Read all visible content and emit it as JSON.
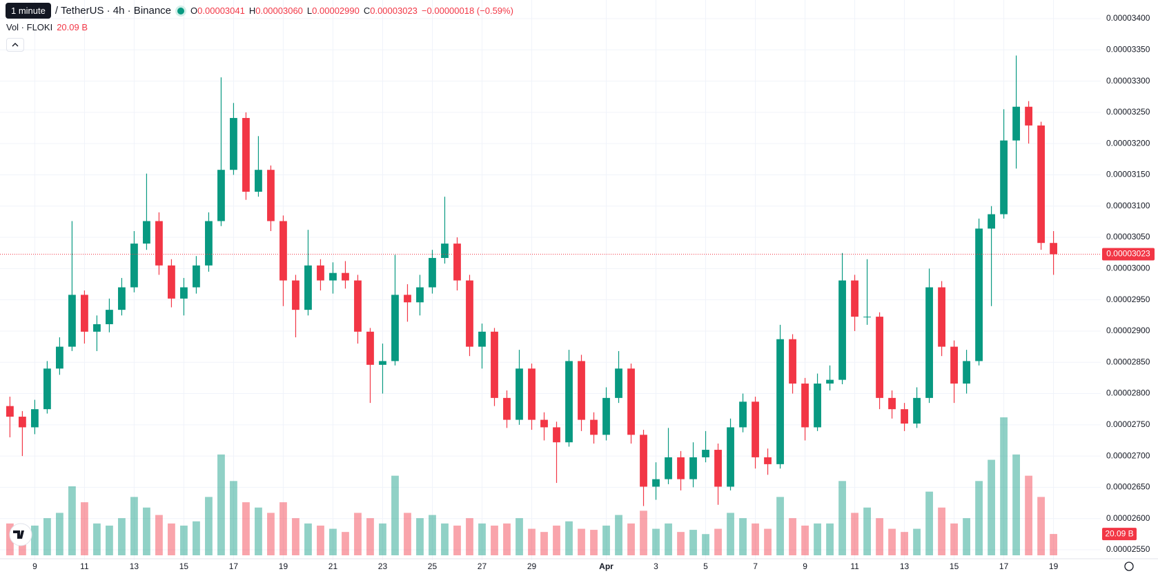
{
  "chart_data": {
    "type": "candlestick",
    "legend": {
      "symbol": "/ TetherUS · 4h · Binance",
      "items": [
        {
          "label": "O",
          "value": "0.00003041"
        },
        {
          "label": "H",
          "value": "0.00003060"
        },
        {
          "label": "L",
          "value": "0.00002990"
        },
        {
          "label": "C",
          "value": "0.00003023"
        }
      ],
      "change": "−0.00000018 (−0.59%)"
    },
    "tooltip": "1 minute",
    "volume_title": "Vol · FLOKI",
    "volume_value_label": "20.09 B",
    "last_price": {
      "value": 3.023e-05,
      "label": "0.00003023"
    },
    "up_color": "#089981",
    "down_color": "#f23645",
    "grid": true,
    "x": [
      8,
      8.5,
      9,
      9.5,
      10,
      10.5,
      11,
      11.5,
      12,
      12.5,
      13,
      13.5,
      14,
      14.5,
      15,
      15.5,
      16,
      16.5,
      17,
      17.5,
      18,
      18.5,
      19,
      19.5,
      20,
      20.5,
      21,
      21.5,
      22,
      22.5,
      23,
      23.5,
      24,
      24.5,
      25,
      25.5,
      26,
      26.5,
      27,
      27.5,
      28,
      28.5,
      29,
      29.5,
      30,
      30.5,
      31,
      31.5,
      32,
      32.5,
      33,
      33.5,
      34,
      34.5,
      35,
      35.5,
      36,
      36.5,
      37,
      37.5,
      38,
      38.5,
      39,
      39.5,
      40,
      40.5,
      41,
      41.5,
      42,
      42.5,
      43,
      43.5,
      44,
      44.5,
      45,
      45.5,
      46,
      46.5,
      47,
      47.5,
      48,
      48.5,
      49,
      49.5,
      50
    ],
    "open": [
      2.78e-05,
      2.763e-05,
      2.746e-05,
      2.775e-05,
      2.84e-05,
      2.875e-05,
      2.958e-05,
      2.899e-05,
      2.911e-05,
      2.934e-05,
      2.97e-05,
      3.04e-05,
      3.076e-05,
      3.005e-05,
      2.952e-05,
      2.97e-05,
      3.005e-05,
      3.076e-05,
      3.158e-05,
      3.241e-05,
      3.123e-05,
      3.158e-05,
      3.076e-05,
      2.981e-05,
      2.934e-05,
      3.005e-05,
      2.981e-05,
      2.993e-05,
      2.981e-05,
      2.899e-05,
      2.846e-05,
      2.852e-05,
      2.958e-05,
      2.946e-05,
      2.97e-05,
      3.017e-05,
      3.04e-05,
      2.981e-05,
      2.875e-05,
      2.899e-05,
      2.793e-05,
      2.758e-05,
      2.84e-05,
      2.758e-05,
      2.746e-05,
      2.722e-05,
      2.852e-05,
      2.758e-05,
      2.734e-05,
      2.793e-05,
      2.84e-05,
      2.734e-05,
      2.651e-05,
      2.663e-05,
      2.698e-05,
      2.663e-05,
      2.698e-05,
      2.71e-05,
      2.651e-05,
      2.746e-05,
      2.787e-05,
      2.698e-05,
      2.687e-05,
      2.887e-05,
      2.816e-05,
      2.746e-05,
      2.816e-05,
      2.822e-05,
      2.981e-05,
      2.923e-05,
      2.923e-05,
      2.793e-05,
      2.775e-05,
      2.752e-05,
      2.793e-05,
      2.97e-05,
      2.875e-05,
      2.816e-05,
      2.852e-05,
      3.064e-05,
      3.087e-05,
      3.205e-05,
      3.259e-05,
      3.229e-05,
      3.041e-05
    ],
    "high": [
      2.795e-05,
      2.772e-05,
      2.79e-05,
      2.852e-05,
      2.89e-05,
      3.076e-05,
      2.965e-05,
      2.925e-05,
      2.952e-05,
      2.985e-05,
      3.06e-05,
      3.152e-05,
      3.09e-05,
      3.015e-05,
      2.985e-05,
      3.02e-05,
      3.09e-05,
      3.306e-05,
      3.265e-05,
      3.25e-05,
      3.212e-05,
      3.165e-05,
      3.085e-05,
      2.99e-05,
      3.062e-05,
      3.015e-05,
      3.01e-05,
      3.012e-05,
      2.99e-05,
      2.905e-05,
      2.88e-05,
      3.022e-05,
      2.975e-05,
      2.99e-05,
      3.03e-05,
      3.115e-05,
      3.05e-05,
      2.99e-05,
      2.912e-05,
      2.905e-05,
      2.805e-05,
      2.87e-05,
      2.848e-05,
      2.77e-05,
      2.755e-05,
      2.87e-05,
      2.862e-05,
      2.77e-05,
      2.81e-05,
      2.868e-05,
      2.848e-05,
      2.742e-05,
      2.69e-05,
      2.745e-05,
      2.708e-05,
      2.722e-05,
      2.74e-05,
      2.72e-05,
      2.76e-05,
      2.8e-05,
      2.795e-05,
      2.712e-05,
      2.91e-05,
      2.895e-05,
      2.825e-05,
      2.832e-05,
      2.845e-05,
      3.025e-05,
      2.99e-05,
      3.015e-05,
      2.93e-05,
      2.805e-05,
      2.785e-05,
      2.81e-05,
      3e-05,
      2.98e-05,
      2.885e-05,
      2.87e-05,
      3.08e-05,
      3.1e-05,
      3.255e-05,
      3.341e-05,
      3.268e-05,
      3.235e-05,
      3.06e-05
    ],
    "low": [
      2.73e-05,
      2.7e-05,
      2.735e-05,
      2.768e-05,
      2.83e-05,
      2.868e-05,
      2.88e-05,
      2.868e-05,
      2.898e-05,
      2.925e-05,
      2.962e-05,
      3.03e-05,
      2.99e-05,
      2.938e-05,
      2.925e-05,
      2.96e-05,
      2.995e-05,
      3.068e-05,
      3.15e-05,
      3.11e-05,
      3.115e-05,
      3.06e-05,
      2.94e-05,
      2.89e-05,
      2.925e-05,
      2.965e-05,
      2.96e-05,
      2.968e-05,
      2.88e-05,
      2.785e-05,
      2.8e-05,
      2.845e-05,
      2.915e-05,
      2.925e-05,
      2.96e-05,
      3.008e-05,
      2.965e-05,
      2.86e-05,
      2.84e-05,
      2.78e-05,
      2.745e-05,
      2.75e-05,
      2.742e-05,
      2.725e-05,
      2.657e-05,
      2.715e-05,
      2.74e-05,
      2.72e-05,
      2.725e-05,
      2.785e-05,
      2.72e-05,
      2.62e-05,
      2.63e-05,
      2.655e-05,
      2.645e-05,
      2.65e-05,
      2.69e-05,
      2.622e-05,
      2.645e-05,
      2.738e-05,
      2.68e-05,
      2.67e-05,
      2.68e-05,
      2.8e-05,
      2.725e-05,
      2.74e-05,
      2.805e-05,
      2.815e-05,
      2.9e-05,
      2.91e-05,
      2.775e-05,
      2.76e-05,
      2.74e-05,
      2.745e-05,
      2.785e-05,
      2.86e-05,
      2.785e-05,
      2.8e-05,
      2.845e-05,
      2.94e-05,
      3.08e-05,
      3.16e-05,
      3.2e-05,
      3.03e-05,
      2.99e-05
    ],
    "close": [
      2.763e-05,
      2.746e-05,
      2.775e-05,
      2.84e-05,
      2.875e-05,
      2.958e-05,
      2.899e-05,
      2.911e-05,
      2.934e-05,
      2.97e-05,
      3.04e-05,
      3.076e-05,
      3.005e-05,
      2.952e-05,
      2.97e-05,
      3.005e-05,
      3.076e-05,
      3.158e-05,
      3.241e-05,
      3.123e-05,
      3.158e-05,
      3.076e-05,
      2.981e-05,
      2.934e-05,
      3.005e-05,
      2.981e-05,
      2.993e-05,
      2.981e-05,
      2.899e-05,
      2.846e-05,
      2.852e-05,
      2.958e-05,
      2.946e-05,
      2.97e-05,
      3.017e-05,
      3.04e-05,
      2.981e-05,
      2.875e-05,
      2.899e-05,
      2.793e-05,
      2.758e-05,
      2.84e-05,
      2.758e-05,
      2.746e-05,
      2.722e-05,
      2.852e-05,
      2.758e-05,
      2.734e-05,
      2.793e-05,
      2.84e-05,
      2.734e-05,
      2.651e-05,
      2.663e-05,
      2.698e-05,
      2.663e-05,
      2.698e-05,
      2.71e-05,
      2.651e-05,
      2.746e-05,
      2.787e-05,
      2.698e-05,
      2.687e-05,
      2.887e-05,
      2.816e-05,
      2.746e-05,
      2.816e-05,
      2.822e-05,
      2.981e-05,
      2.923e-05,
      2.923e-05,
      2.793e-05,
      2.775e-05,
      2.752e-05,
      2.793e-05,
      2.97e-05,
      2.875e-05,
      2.816e-05,
      2.852e-05,
      3.064e-05,
      3.087e-05,
      3.205e-05,
      3.259e-05,
      3.229e-05,
      3.041e-05,
      3.023e-05
    ],
    "volume": [
      30,
      25,
      28,
      35,
      40,
      65,
      50,
      30,
      28,
      35,
      55,
      45,
      38,
      30,
      28,
      32,
      55,
      95,
      70,
      50,
      45,
      40,
      50,
      35,
      30,
      28,
      25,
      22,
      40,
      35,
      30,
      75,
      40,
      35,
      38,
      30,
      28,
      35,
      30,
      28,
      30,
      35,
      25,
      22,
      28,
      32,
      25,
      24,
      28,
      38,
      30,
      42,
      25,
      30,
      22,
      24,
      20,
      25,
      40,
      35,
      30,
      25,
      55,
      35,
      28,
      30,
      30,
      70,
      40,
      45,
      35,
      25,
      22,
      25,
      60,
      45,
      30,
      35,
      70,
      90,
      130,
      95,
      75,
      55,
      20.09
    ],
    "xlim": [
      7.6,
      51.9
    ],
    "xticks": [
      9,
      11,
      13,
      15,
      17,
      19,
      21,
      23,
      25,
      27,
      29,
      {
        "value": 32,
        "label": "Apr"
      },
      {
        "value": 34,
        "label": "3"
      },
      {
        "value": 36,
        "label": "5"
      },
      {
        "value": 38,
        "label": "7"
      },
      {
        "value": 40,
        "label": "9"
      },
      {
        "value": 42,
        "label": "11"
      },
      {
        "value": 44,
        "label": "13"
      },
      {
        "value": 46,
        "label": "15"
      },
      {
        "value": 48,
        "label": "17"
      },
      {
        "value": 50,
        "label": "19"
      }
    ],
    "ylim": [
      2.55e-05,
      3.4e-05
    ],
    "yticks": [
      {
        "value": 2.55e-05,
        "label": "0.00002550"
      },
      {
        "value": 2.6e-05,
        "label": "0.00002600"
      },
      {
        "value": 2.65e-05,
        "label": "0.00002650"
      },
      {
        "value": 2.7e-05,
        "label": "0.00002700"
      },
      {
        "value": 2.75e-05,
        "label": "0.00002750"
      },
      {
        "value": 2.8e-05,
        "label": "0.00002800"
      },
      {
        "value": 2.85e-05,
        "label": "0.00002850"
      },
      {
        "value": 2.9e-05,
        "label": "0.00002900"
      },
      {
        "value": 2.95e-05,
        "label": "0.00002950"
      },
      {
        "value": 3e-05,
        "label": "0.00003000"
      },
      {
        "value": 3.05e-05,
        "label": "0.00003050"
      },
      {
        "value": 3.1e-05,
        "label": "0.00003100"
      },
      {
        "value": 3.15e-05,
        "label": "0.00003150"
      },
      {
        "value": 3.2e-05,
        "label": "0.00003200"
      },
      {
        "value": 3.25e-05,
        "label": "0.00003250"
      },
      {
        "value": 3.3e-05,
        "label": "0.00003300"
      },
      {
        "value": 3.35e-05,
        "label": "0.00003350"
      },
      {
        "value": 3.4e-05,
        "label": "0.00003400"
      }
    ]
  }
}
